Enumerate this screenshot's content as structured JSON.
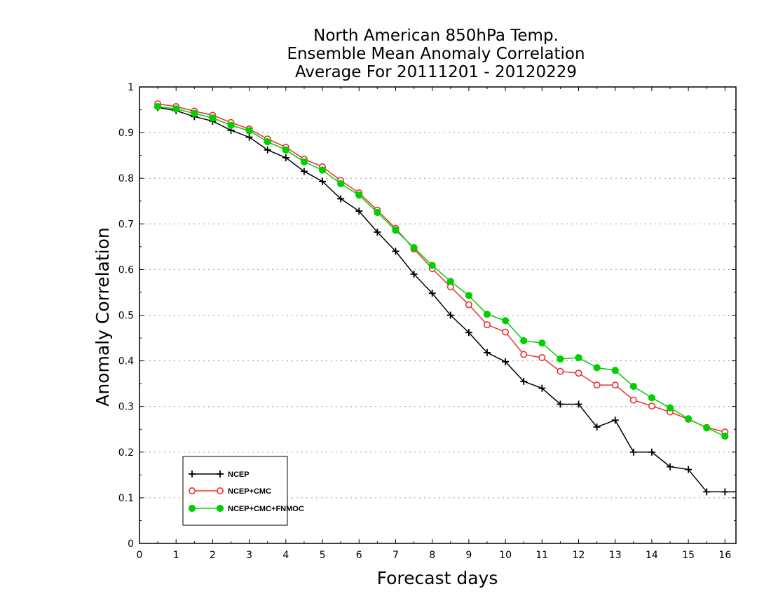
{
  "chart_data": {
    "type": "line",
    "title": [
      "North American 850hPa Temp.",
      "Ensemble Mean Anomaly Correlation",
      "Average For 20111201 - 20120229"
    ],
    "xlabel": "Forecast days",
    "ylabel": "Anomaly Correlation",
    "xlim": [
      0,
      16.3
    ],
    "ylim": [
      0,
      1
    ],
    "xticks": [
      0,
      1,
      2,
      3,
      4,
      5,
      6,
      7,
      8,
      9,
      10,
      11,
      12,
      13,
      14,
      15,
      16
    ],
    "yticks": [
      0,
      0.1,
      0.2,
      0.3,
      0.4,
      0.5,
      0.6,
      0.7,
      0.8,
      0.9,
      1
    ],
    "grid": "horizontal dotted",
    "legend_position": "bottom-left",
    "x": [
      0.5,
      1,
      1.5,
      2,
      2.5,
      3,
      3.5,
      4,
      4.5,
      5,
      5.5,
      6,
      6.5,
      7,
      7.5,
      8,
      8.5,
      9,
      9.5,
      10,
      10.5,
      11,
      11.5,
      12,
      12.5,
      13,
      13.5,
      14,
      14.5,
      15,
      15.5,
      16
    ],
    "series": [
      {
        "name": "NCEP",
        "color": "#000000",
        "marker": "plus",
        "values": [
          0.955,
          0.948,
          0.935,
          0.925,
          0.905,
          0.89,
          0.862,
          0.845,
          0.815,
          0.793,
          0.755,
          0.728,
          0.682,
          0.64,
          0.59,
          0.548,
          0.5,
          0.462,
          0.418,
          0.398,
          0.355,
          0.34,
          0.305,
          0.305,
          0.255,
          0.27,
          0.2,
          0.2,
          0.168,
          0.162,
          0.113,
          0.113
        ]
      },
      {
        "name": "NCEP+CMC",
        "color": "#e83030",
        "marker": "open-circle",
        "values": [
          0.963,
          0.957,
          0.947,
          0.938,
          0.922,
          0.908,
          0.886,
          0.868,
          0.842,
          0.825,
          0.795,
          0.768,
          0.73,
          0.69,
          0.645,
          0.602,
          0.562,
          0.523,
          0.479,
          0.463,
          0.414,
          0.407,
          0.377,
          0.373,
          0.347,
          0.347,
          0.314,
          0.301,
          0.288,
          0.272,
          0.254,
          0.244
        ]
      },
      {
        "name": "NCEP+CMC+FNMOC",
        "color": "#00d000",
        "marker": "filled-circle",
        "values": [
          0.957,
          0.952,
          0.942,
          0.932,
          0.916,
          0.904,
          0.88,
          0.862,
          0.836,
          0.818,
          0.788,
          0.763,
          0.725,
          0.686,
          0.648,
          0.609,
          0.574,
          0.543,
          0.502,
          0.488,
          0.444,
          0.439,
          0.404,
          0.407,
          0.385,
          0.379,
          0.344,
          0.319,
          0.297,
          0.273,
          0.253,
          0.235
        ]
      }
    ]
  }
}
